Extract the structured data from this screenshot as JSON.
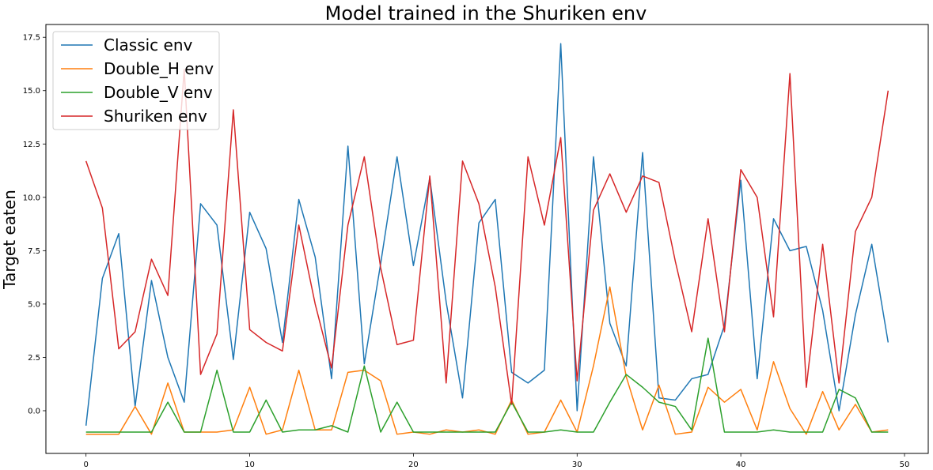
{
  "chart_data": {
    "type": "line",
    "title": "Model trained in the Shuriken env",
    "xlabel": "",
    "ylabel": "Target eaten",
    "xlim": [
      -2.45,
      51.45
    ],
    "ylim": [
      -2.0,
      18.1
    ],
    "xticks": [
      0,
      10,
      20,
      30,
      40,
      50
    ],
    "yticks": [
      0.0,
      2.5,
      5.0,
      7.5,
      10.0,
      12.5,
      15.0,
      17.5
    ],
    "ytick_labels": [
      "0.0",
      "2.5",
      "5.0",
      "7.5",
      "10.0",
      "12.5",
      "15.0",
      "17.5"
    ],
    "grid": false,
    "legend_position": "top-left",
    "x": [
      0,
      1,
      2,
      3,
      4,
      5,
      6,
      7,
      8,
      9,
      10,
      11,
      12,
      13,
      14,
      15,
      16,
      17,
      18,
      19,
      20,
      21,
      22,
      23,
      24,
      25,
      26,
      27,
      28,
      29,
      30,
      31,
      32,
      33,
      34,
      35,
      36,
      37,
      38,
      39,
      40,
      41,
      42,
      43,
      44,
      45,
      46,
      47,
      48,
      49
    ],
    "series": [
      {
        "name": "Classic env",
        "color": "#1f77b4",
        "values": [
          -0.7,
          6.2,
          8.3,
          0.2,
          6.1,
          2.5,
          0.4,
          9.7,
          8.7,
          2.4,
          9.3,
          7.6,
          3.2,
          9.9,
          7.2,
          1.5,
          12.4,
          2.2,
          6.9,
          11.9,
          6.8,
          10.9,
          5.1,
          0.6,
          8.8,
          9.9,
          1.8,
          1.3,
          1.9,
          17.2,
          0.0,
          11.9,
          4.1,
          2.1,
          12.1,
          0.6,
          0.5,
          1.5,
          1.7,
          4.0,
          10.8,
          1.5,
          9.0,
          7.5,
          7.7,
          4.7,
          0.0,
          4.5,
          7.8,
          3.2
        ]
      },
      {
        "name": "Double_H env",
        "color": "#ff7f0e",
        "values": [
          -1.1,
          -1.1,
          -1.1,
          0.2,
          -1.1,
          1.3,
          -1.0,
          -1.0,
          -1.0,
          -0.9,
          1.1,
          -1.1,
          -0.9,
          1.9,
          -0.9,
          -0.9,
          1.8,
          1.9,
          1.4,
          -1.1,
          -1.0,
          -1.1,
          -0.9,
          -1.0,
          -0.9,
          -1.1,
          0.5,
          -1.1,
          -1.0,
          0.5,
          -1.0,
          2.1,
          5.8,
          1.6,
          -0.9,
          1.2,
          -1.1,
          -1.0,
          1.1,
          0.4,
          1.0,
          -0.9,
          2.3,
          0.1,
          -1.1,
          0.9,
          -0.9,
          0.3,
          -1.0,
          -0.9
        ]
      },
      {
        "name": "Double_V env",
        "color": "#2ca02c",
        "values": [
          -1.0,
          -1.0,
          -1.0,
          -1.0,
          -1.0,
          0.4,
          -1.0,
          -1.0,
          1.9,
          -1.0,
          -1.0,
          0.5,
          -1.0,
          -0.9,
          -0.9,
          -0.7,
          -1.0,
          2.1,
          -1.0,
          0.4,
          -1.0,
          -1.0,
          -1.0,
          -1.0,
          -1.0,
          -1.0,
          0.4,
          -1.0,
          -1.0,
          -0.9,
          -1.0,
          -1.0,
          0.4,
          1.7,
          1.1,
          0.4,
          0.2,
          -0.9,
          3.4,
          -1.0,
          -1.0,
          -1.0,
          -0.9,
          -1.0,
          -1.0,
          -1.0,
          1.0,
          0.6,
          -1.0,
          -1.0
        ]
      },
      {
        "name": "Shuriken env",
        "color": "#d62728",
        "values": [
          11.7,
          9.5,
          2.9,
          3.7,
          7.1,
          5.4,
          16.0,
          1.7,
          3.6,
          14.1,
          3.8,
          3.2,
          2.8,
          8.7,
          5.0,
          2.0,
          8.7,
          11.9,
          6.7,
          3.1,
          3.3,
          11.0,
          1.3,
          11.7,
          9.7,
          5.8,
          0.3,
          11.9,
          8.7,
          12.8,
          1.4,
          9.4,
          11.1,
          9.3,
          11.0,
          10.7,
          7.0,
          3.7,
          9.0,
          3.7,
          11.3,
          10.0,
          4.4,
          15.8,
          1.1,
          7.8,
          1.3,
          8.4,
          10.0,
          15.0
        ]
      }
    ]
  }
}
